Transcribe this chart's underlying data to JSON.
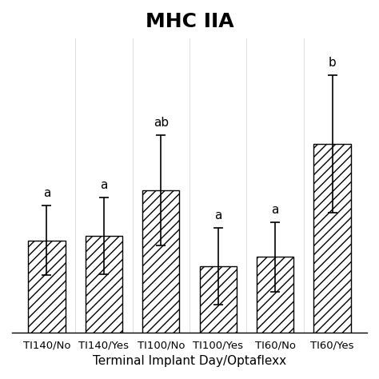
{
  "title": "MHC IIA",
  "xlabel": "Terminal Implant Day/Optaflexx",
  "ylabel": "",
  "categories": [
    "TI140/No",
    "TI140/Yes",
    "TI100/No",
    "TI100/Yes",
    "TI60/No",
    "TI60/Yes"
  ],
  "values": [
    1.0,
    1.05,
    1.55,
    0.72,
    0.82,
    2.05
  ],
  "errors": [
    0.38,
    0.42,
    0.6,
    0.42,
    0.38,
    0.75
  ],
  "labels": [
    "a",
    "a",
    "ab",
    "a",
    "a",
    "b"
  ],
  "bar_color": "white",
  "bar_edgecolor": "black",
  "hatch": "///",
  "title_fontsize": 18,
  "title_fontweight": "bold",
  "xlabel_fontsize": 11,
  "tick_fontsize": 9.5,
  "label_fontsize": 11,
  "ylim": [
    0,
    3.2
  ],
  "bar_width": 0.65
}
